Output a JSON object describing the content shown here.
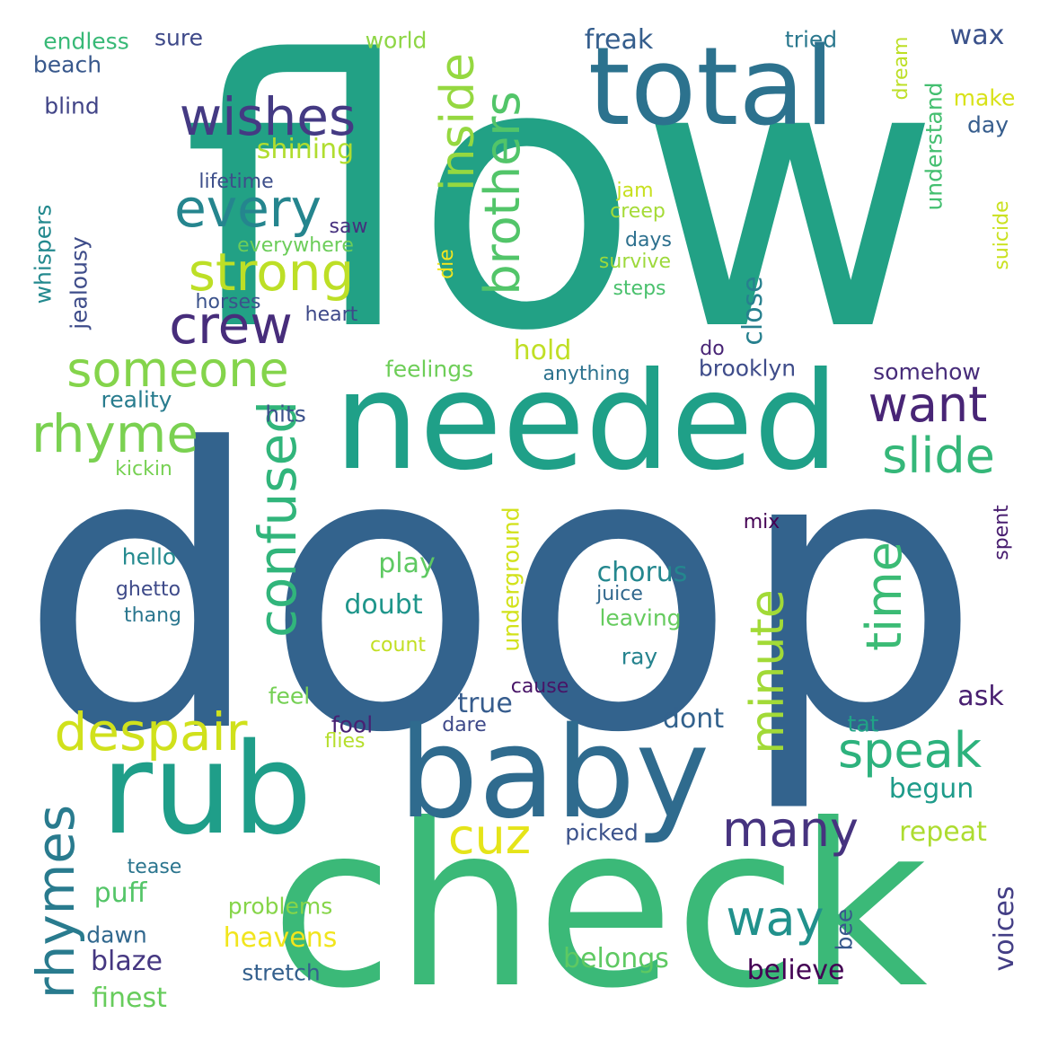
{
  "words": [
    {
      "text": "flow",
      "color": "#22a185"
    },
    {
      "text": "doop",
      "color": "#33638d"
    },
    {
      "text": "check",
      "color": "#3bb978"
    },
    {
      "text": "needed",
      "color": "#1fa088"
    },
    {
      "text": "baby",
      "color": "#2f6b8e"
    },
    {
      "text": "rub",
      "color": "#1f9e89"
    },
    {
      "text": "total",
      "color": "#2c728e"
    },
    {
      "text": "wishes",
      "color": "#443a83"
    },
    {
      "text": "every",
      "color": "#25858e"
    },
    {
      "text": "strong",
      "color": "#bddf26"
    },
    {
      "text": "crew",
      "color": "#472d7b"
    },
    {
      "text": "someone",
      "color": "#84d44b"
    },
    {
      "text": "rhyme",
      "color": "#7ad151"
    },
    {
      "text": "despair",
      "color": "#d0e11c"
    },
    {
      "text": "want",
      "color": "#482576"
    },
    {
      "text": "slide",
      "color": "#35b779"
    },
    {
      "text": "speak",
      "color": "#2db27d"
    },
    {
      "text": "many",
      "color": "#46337f"
    },
    {
      "text": "way",
      "color": "#21918c"
    },
    {
      "text": "cuz",
      "color": "#e5e419"
    },
    {
      "text": "brothers",
      "color": "#52c569"
    },
    {
      "text": "inside",
      "color": "#95d840"
    },
    {
      "text": "confused",
      "color": "#31b57b"
    },
    {
      "text": "minute",
      "color": "#a2da37"
    },
    {
      "text": "time",
      "color": "#3bbb75"
    },
    {
      "text": "rhymes",
      "color": "#297b8e"
    },
    {
      "text": "freak",
      "color": "#355e8d"
    },
    {
      "text": "wax",
      "color": "#3b528b"
    },
    {
      "text": "world",
      "color": "#8ed645"
    },
    {
      "text": "tried",
      "color": "#2a788e"
    },
    {
      "text": "make",
      "color": "#d8e219"
    },
    {
      "text": "day",
      "color": "#365d8d"
    },
    {
      "text": "endless",
      "color": "#38b977"
    },
    {
      "text": "sure",
      "color": "#3e4989"
    },
    {
      "text": "beach",
      "color": "#38588c"
    },
    {
      "text": "blind",
      "color": "#414487"
    },
    {
      "text": "shining",
      "color": "#b0dd2f"
    },
    {
      "text": "lifetime",
      "color": "#3d4e8a"
    },
    {
      "text": "jam",
      "color": "#c8e020"
    },
    {
      "text": "creep",
      "color": "#a5db36"
    },
    {
      "text": "days",
      "color": "#2d708e"
    },
    {
      "text": "survive",
      "color": "#9dd93b"
    },
    {
      "text": "steps",
      "color": "#4ac16d"
    },
    {
      "text": "saw",
      "color": "#46307e"
    },
    {
      "text": "everywhere",
      "color": "#6ccd5a"
    },
    {
      "text": "horses",
      "color": "#3b528b"
    },
    {
      "text": "heart",
      "color": "#3e4989"
    },
    {
      "text": "hold",
      "color": "#c0df25"
    },
    {
      "text": "feelings",
      "color": "#6ece58"
    },
    {
      "text": "anything",
      "color": "#2c728e"
    },
    {
      "text": "brooklyn",
      "color": "#3e4c8a"
    },
    {
      "text": "somehow",
      "color": "#472c7a"
    },
    {
      "text": "do",
      "color": "#482475"
    },
    {
      "text": "close",
      "color": "#27808e"
    },
    {
      "text": "reality",
      "color": "#287c8e"
    },
    {
      "text": "hits",
      "color": "#3b528b"
    },
    {
      "text": "kickin",
      "color": "#77d153"
    },
    {
      "text": "hello",
      "color": "#23898e"
    },
    {
      "text": "ghetto",
      "color": "#3e4a89"
    },
    {
      "text": "thang",
      "color": "#2a768e"
    },
    {
      "text": "play",
      "color": "#5ec962"
    },
    {
      "text": "doubt",
      "color": "#1f968b"
    },
    {
      "text": "count",
      "color": "#c2df23"
    },
    {
      "text": "chorus",
      "color": "#24878e"
    },
    {
      "text": "juice",
      "color": "#31688e"
    },
    {
      "text": "leaving",
      "color": "#65cb5e"
    },
    {
      "text": "ray",
      "color": "#25838e"
    },
    {
      "text": "mix",
      "color": "#440154"
    },
    {
      "text": "cause",
      "color": "#481467"
    },
    {
      "text": "true",
      "color": "#365c8d"
    },
    {
      "text": "dare",
      "color": "#3e4989"
    },
    {
      "text": "dont",
      "color": "#33628d"
    },
    {
      "text": "ask",
      "color": "#481f70"
    },
    {
      "text": "tat",
      "color": "#20a386"
    },
    {
      "text": "begun",
      "color": "#1e9b8a"
    },
    {
      "text": "repeat",
      "color": "#addc30"
    },
    {
      "text": "feel",
      "color": "#75d054"
    },
    {
      "text": "fool",
      "color": "#482173"
    },
    {
      "text": "flies",
      "color": "#b5de2b"
    },
    {
      "text": "picked",
      "color": "#3b528b"
    },
    {
      "text": "tease",
      "color": "#2b758e"
    },
    {
      "text": "puff",
      "color": "#54c568"
    },
    {
      "text": "problems",
      "color": "#86d549"
    },
    {
      "text": "heavens",
      "color": "#f1e51d"
    },
    {
      "text": "dawn",
      "color": "#31688e"
    },
    {
      "text": "blaze",
      "color": "#453781"
    },
    {
      "text": "stretch",
      "color": "#34608d"
    },
    {
      "text": "finest",
      "color": "#67cc5c"
    },
    {
      "text": "belongs",
      "color": "#5ec962"
    },
    {
      "text": "believe",
      "color": "#440154"
    },
    {
      "text": "voices",
      "color": "#433e85"
    },
    {
      "text": "bee",
      "color": "#38588c"
    },
    {
      "text": "dream",
      "color": "#bddf26"
    },
    {
      "text": "understand",
      "color": "#44bf70"
    },
    {
      "text": "suicide",
      "color": "#cae11f"
    },
    {
      "text": "spent",
      "color": "#481d6f"
    },
    {
      "text": "whispers",
      "color": "#23898e"
    },
    {
      "text": "jealousy",
      "color": "#3e4c8a"
    },
    {
      "text": "die",
      "color": "#f4e61e"
    },
    {
      "text": "underground",
      "color": "#d2e21b"
    }
  ]
}
